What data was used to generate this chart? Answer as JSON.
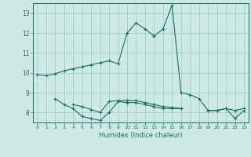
{
  "bg_color": "#cce9e4",
  "line_color": "#1a6e62",
  "grid_color": "#99ccc4",
  "xlabel": "Humidex (Indice chaleur)",
  "ylim": [
    7.5,
    13.5
  ],
  "xlim": [
    -0.5,
    23.5
  ],
  "yticks": [
    8,
    9,
    10,
    11,
    12,
    13
  ],
  "xticks": [
    0,
    1,
    2,
    3,
    4,
    5,
    6,
    7,
    8,
    9,
    10,
    11,
    12,
    13,
    14,
    15,
    16,
    17,
    18,
    19,
    20,
    21,
    22,
    23
  ],
  "series": [
    [
      9.9,
      9.85,
      9.95,
      10.1,
      10.2,
      10.3,
      10.4,
      10.5,
      10.6,
      10.45,
      12.0,
      12.5,
      12.2,
      11.85,
      12.2,
      13.4,
      9.0,
      8.9,
      8.7,
      8.1,
      8.1,
      8.2,
      8.1,
      8.2
    ],
    [
      null,
      null,
      8.7,
      8.4,
      8.2,
      7.8,
      7.7,
      7.6,
      8.0,
      8.55,
      8.5,
      8.5,
      8.4,
      8.3,
      8.2,
      8.2,
      8.2,
      null,
      null,
      null,
      null,
      null,
      null,
      null
    ],
    [
      null,
      null,
      null,
      null,
      8.4,
      8.3,
      8.15,
      8.0,
      8.55,
      8.6,
      8.6,
      8.6,
      8.5,
      8.4,
      8.3,
      8.25,
      8.2,
      null,
      null,
      null,
      null,
      null,
      null,
      null
    ],
    [
      null,
      null,
      null,
      null,
      null,
      null,
      null,
      null,
      null,
      null,
      null,
      null,
      null,
      null,
      null,
      null,
      null,
      null,
      null,
      8.1,
      8.1,
      8.2,
      7.7,
      8.1
    ]
  ],
  "figsize": [
    3.2,
    2.0
  ],
  "dpi": 100
}
